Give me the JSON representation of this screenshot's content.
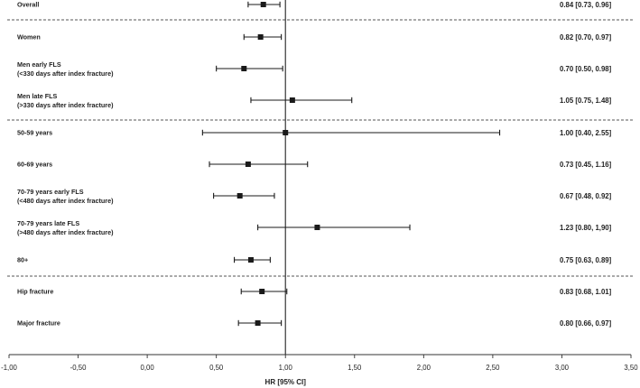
{
  "chart_data": {
    "type": "forest",
    "xlabel": "HR [95% CI]",
    "xlim": [
      -1.0,
      3.5
    ],
    "x_ticks": [
      "-1,00",
      "-0,50",
      "0,00",
      "0,50",
      "1,00",
      "1,50",
      "2,00",
      "2,50",
      "3,00",
      "3,50"
    ],
    "x_tick_values": [
      -1.0,
      -0.5,
      0.0,
      0.5,
      1.0,
      1.5,
      2.0,
      2.5,
      3.0,
      3.5
    ],
    "reference_line": 1.0,
    "rows": [
      {
        "label": [
          "Overall"
        ],
        "hr": 0.84,
        "lo": 0.73,
        "hi": 0.96,
        "text": "0.84 [0.73, 0.96]"
      },
      {
        "label": [
          "Women"
        ],
        "hr": 0.82,
        "lo": 0.7,
        "hi": 0.97,
        "text": "0.82 [0.70, 0.97]"
      },
      {
        "label": [
          "Men early FLS",
          "(<330 days after index fracture)"
        ],
        "hr": 0.7,
        "lo": 0.5,
        "hi": 0.98,
        "text": "0.70 [0.50, 0.98]"
      },
      {
        "label": [
          "Men late FLS",
          "(>330 days after index fracture)"
        ],
        "hr": 1.05,
        "lo": 0.75,
        "hi": 1.48,
        "text": "1.05 [0.75, 1.48]"
      },
      {
        "label": [
          "50-59 years"
        ],
        "hr": 1.0,
        "lo": 0.4,
        "hi": 2.55,
        "text": "1.00 [0.40, 2.55]"
      },
      {
        "label": [
          "60-69 years"
        ],
        "hr": 0.73,
        "lo": 0.45,
        "hi": 1.16,
        "text": "0.73 [0.45, 1.16]"
      },
      {
        "label": [
          "70-79 years early FLS",
          "(<480 days after index fracture)"
        ],
        "hr": 0.67,
        "lo": 0.48,
        "hi": 0.92,
        "text": "0.67 [0.48, 0.92]"
      },
      {
        "label": [
          "70-79 years late FLS",
          "(>480 days after index fracture)"
        ],
        "hr": 1.23,
        "lo": 0.8,
        "hi": 1.9,
        "text": "1.23 [0.80, 1,90]"
      },
      {
        "label": [
          "80+"
        ],
        "hr": 0.75,
        "lo": 0.63,
        "hi": 0.89,
        "text": "0.75 [0.63, 0.89]"
      },
      {
        "label": [
          "Hip fracture"
        ],
        "hr": 0.83,
        "lo": 0.68,
        "hi": 1.01,
        "text": "0.83 [0.68, 1.01]"
      },
      {
        "label": [
          "Major fracture"
        ],
        "hr": 0.8,
        "lo": 0.66,
        "hi": 0.97,
        "text": "0.80 [0.66, 0.97]"
      }
    ],
    "separators_after_rows": [
      0,
      3,
      8
    ],
    "grid": false,
    "colors": {
      "marks": "#1a1a1a",
      "separator": "#555555"
    }
  }
}
